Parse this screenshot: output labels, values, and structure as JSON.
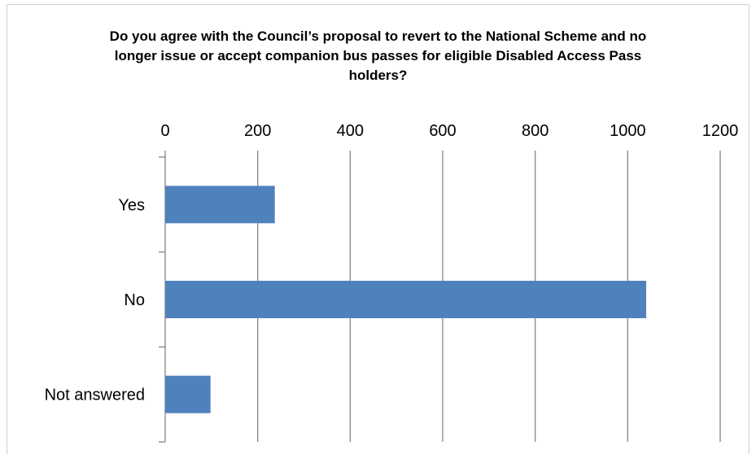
{
  "chart_data": {
    "type": "bar",
    "orientation": "horizontal",
    "title": "Do you agree with the Council’s proposal to revert to the National Scheme and no longer issue or accept companion bus passes for eligible Disabled Access Pass holders?",
    "categories": [
      "Yes",
      "No",
      "Not answered"
    ],
    "values": [
      237,
      1040,
      98
    ],
    "xlim": [
      0,
      1200
    ],
    "xticks": [
      0,
      200,
      400,
      600,
      800,
      1000,
      1200
    ],
    "xaxis_position": "top",
    "grid": true,
    "legend": "none",
    "bar_color": "#4f81bd",
    "grid_color": "#868686"
  }
}
